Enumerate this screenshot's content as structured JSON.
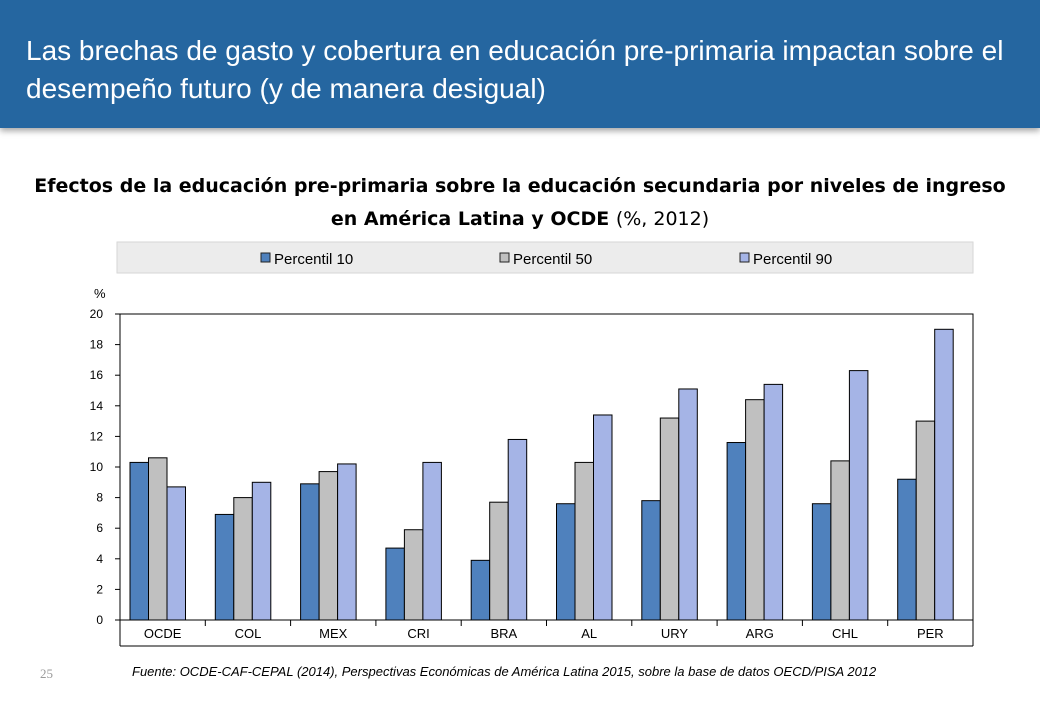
{
  "slide": {
    "title": "Las brechas de gasto y cobertura en educación pre-primaria impactan sobre el desempeño futuro (y de manera desigual)",
    "page_number": "25",
    "source": "Fuente: OCDE-CAF-CEPAL (2014), Perspectivas Económicas de América Latina 2015,  sobre la base de datos OECD/PISA 2012",
    "header_color": "#2566a0"
  },
  "chart_data": {
    "type": "bar",
    "title": "Efectos de la educación pre-primaria sobre la educación secundaria por niveles de ingreso en América Latina y OCDE",
    "subtitle": "(%, 2012)",
    "ylabel": "%",
    "xlabel": "",
    "ylim": [
      0,
      20
    ],
    "yticks": [
      "0",
      "2",
      "4",
      "6",
      "8",
      "10",
      "12",
      "14",
      "16",
      "18",
      "20"
    ],
    "grid": false,
    "legend_position": "top",
    "categories": [
      "OCDE",
      "COL",
      "MEX",
      "CRI",
      "BRA",
      "AL",
      "URY",
      "ARG",
      "CHL",
      "PER"
    ],
    "series": [
      {
        "name": "Percentil 10",
        "color": "#4f81bd",
        "values": [
          10.3,
          6.9,
          8.9,
          4.7,
          3.9,
          7.6,
          7.8,
          11.6,
          7.6,
          9.2
        ]
      },
      {
        "name": "Percentil 50",
        "color": "#c0c0c0",
        "values": [
          10.6,
          8.0,
          9.7,
          5.9,
          7.7,
          10.3,
          13.2,
          14.4,
          10.4,
          13.0
        ]
      },
      {
        "name": "Percentil 90",
        "color": "#a5b4e6",
        "values": [
          8.7,
          9.0,
          10.2,
          10.3,
          11.8,
          13.4,
          15.1,
          15.4,
          16.3,
          19.0
        ]
      }
    ]
  }
}
